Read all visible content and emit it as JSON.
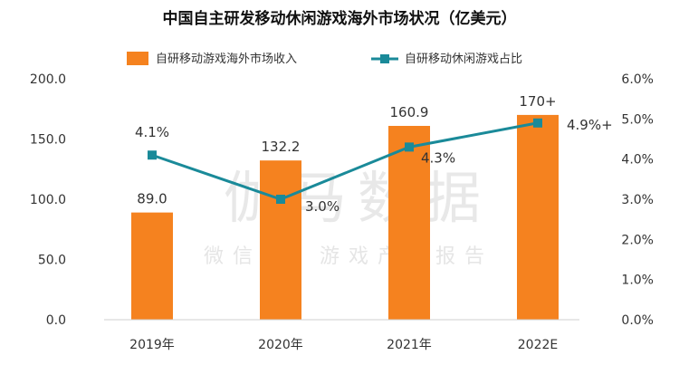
{
  "chart_data": {
    "type": "bar+line",
    "title": "中国自主研发移动休闲游戏海外市场状况（亿美元）",
    "categories": [
      "2019年",
      "2020年",
      "2021年",
      "2022E"
    ],
    "series": [
      {
        "name": "自研移动游戏海外市场收入",
        "type": "bar",
        "axis": "left",
        "color": "#f5821f",
        "values": [
          89.0,
          132.2,
          160.9,
          170
        ],
        "labels": [
          "89.0",
          "132.2",
          "160.9",
          "170+"
        ]
      },
      {
        "name": "自研移动休闲游戏占比",
        "type": "line",
        "axis": "right",
        "color": "#1a8a99",
        "values": [
          4.1,
          3.0,
          4.3,
          4.9
        ],
        "labels": [
          "4.1%",
          "3.0%",
          "4.3%",
          "4.9%+"
        ]
      }
    ],
    "y_left": {
      "min": 0,
      "max": 200,
      "ticks": [
        "0.0",
        "50.0",
        "100.0",
        "150.0",
        "200.0"
      ]
    },
    "y_right": {
      "min": 0,
      "max": 6,
      "ticks": [
        "0.0%",
        "1.0%",
        "2.0%",
        "3.0%",
        "4.0%",
        "5.0%",
        "6.0%"
      ]
    },
    "grid": false,
    "legend_position": "top-center"
  },
  "watermark": {
    "main": "伽马数据",
    "sub": "微信号：游戏产业报告"
  }
}
